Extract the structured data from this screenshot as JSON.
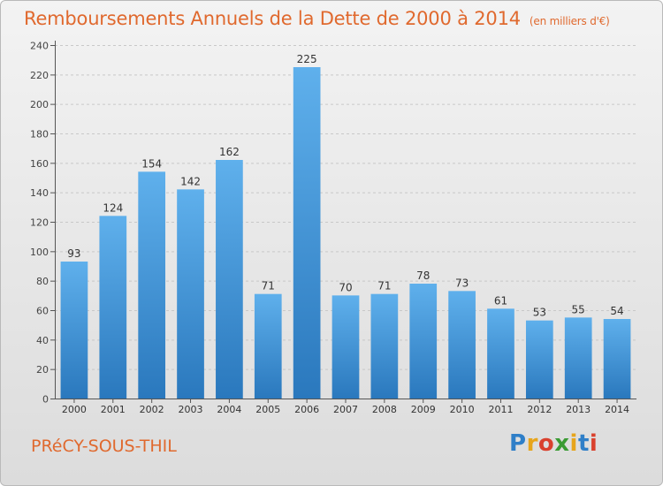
{
  "header": {
    "title": "Remboursements Annuels de la Dette de 2000 à 2014",
    "unit": "(en milliers d'€)"
  },
  "footer": {
    "commune": "PRéCY-SOUS-THIL",
    "logo_text": "Proxiti"
  },
  "colors": {
    "title": "#e0692e",
    "bar_top": "#5fb0ec",
    "bar_bottom": "#2a78bd",
    "grid": "#c8c8c8"
  },
  "chart_data": {
    "type": "bar",
    "title": "Remboursements Annuels de la Dette de 2000 à 2014",
    "xlabel": "",
    "ylabel": "",
    "categories": [
      "2000",
      "2001",
      "2002",
      "2003",
      "2004",
      "2005",
      "2006",
      "2007",
      "2008",
      "2009",
      "2010",
      "2011",
      "2012",
      "2013",
      "2014"
    ],
    "values": [
      93,
      124,
      154,
      142,
      162,
      71,
      225,
      70,
      71,
      78,
      73,
      61,
      53,
      55,
      54
    ],
    "ylim": [
      0,
      240
    ],
    "yticks": [
      0,
      20,
      40,
      60,
      80,
      100,
      120,
      140,
      160,
      180,
      200,
      220,
      240
    ],
    "grid": true,
    "data_labels": true
  }
}
